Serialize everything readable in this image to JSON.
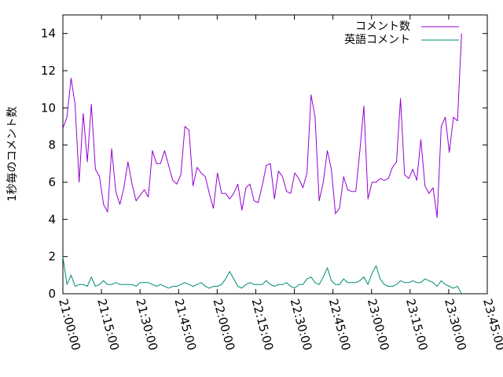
{
  "chart_data": {
    "type": "line",
    "ylabel": "1秒毎のコメント数",
    "xlabel": "",
    "x_ticks": [
      "21:00:00",
      "21:15:00",
      "21:30:00",
      "21:45:00",
      "22:00:00",
      "22:15:00",
      "22:30:00",
      "22:45:00",
      "23:00:00",
      "23:15:00",
      "23:30:00",
      "23:45:00"
    ],
    "y_ticks": [
      0,
      2,
      4,
      6,
      8,
      10,
      12,
      14
    ],
    "xlim": [
      "21:00:00",
      "23:45:00"
    ],
    "ylim": [
      0,
      15
    ],
    "grid": false,
    "legend_position": "top-right",
    "series": [
      {
        "name": "コメント数",
        "color": "#9400d3",
        "values": [
          8.9,
          9.5,
          11.6,
          10.2,
          6.0,
          9.7,
          7.1,
          10.2,
          6.7,
          6.3,
          4.8,
          4.4,
          7.8,
          5.5,
          4.8,
          5.7,
          7.1,
          5.9,
          5.0,
          5.3,
          5.6,
          5.2,
          7.7,
          7.0,
          7.0,
          7.7,
          6.9,
          6.1,
          5.9,
          6.4,
          9.0,
          8.8,
          5.8,
          6.8,
          6.5,
          6.3,
          5.4,
          4.6,
          6.5,
          5.4,
          5.4,
          5.1,
          5.4,
          5.9,
          4.5,
          5.7,
          5.9,
          5.0,
          4.9,
          5.8,
          6.9,
          7.0,
          5.1,
          6.6,
          6.3,
          5.5,
          5.4,
          6.5,
          6.2,
          5.7,
          6.5,
          10.7,
          9.5,
          5.0,
          6.0,
          7.7,
          6.7,
          4.3,
          4.6,
          6.3,
          5.6,
          5.5,
          5.5,
          7.7,
          10.1,
          5.1,
          6.0,
          6.0,
          6.2,
          6.1,
          6.2,
          6.8,
          7.1,
          10.5,
          6.4,
          6.2,
          6.7,
          6.1,
          8.3,
          5.8,
          5.4,
          5.7,
          4.1,
          9.0,
          9.5,
          7.6,
          9.5,
          9.3,
          14.0
        ]
      },
      {
        "name": "英語コメント",
        "color": "#008b74",
        "values": [
          2.0,
          0.5,
          1.0,
          0.4,
          0.5,
          0.5,
          0.4,
          0.9,
          0.4,
          0.5,
          0.7,
          0.5,
          0.5,
          0.6,
          0.5,
          0.5,
          0.5,
          0.5,
          0.4,
          0.6,
          0.6,
          0.6,
          0.5,
          0.4,
          0.5,
          0.4,
          0.3,
          0.4,
          0.4,
          0.5,
          0.6,
          0.5,
          0.4,
          0.5,
          0.6,
          0.4,
          0.3,
          0.4,
          0.4,
          0.5,
          0.8,
          1.2,
          0.8,
          0.4,
          0.3,
          0.5,
          0.6,
          0.5,
          0.5,
          0.5,
          0.7,
          0.5,
          0.4,
          0.5,
          0.5,
          0.6,
          0.4,
          0.3,
          0.5,
          0.5,
          0.8,
          0.9,
          0.6,
          0.5,
          0.9,
          1.4,
          0.7,
          0.5,
          0.5,
          0.8,
          0.6,
          0.6,
          0.6,
          0.7,
          0.9,
          0.5,
          1.1,
          1.5,
          0.8,
          0.5,
          0.4,
          0.4,
          0.5,
          0.7,
          0.6,
          0.6,
          0.7,
          0.6,
          0.6,
          0.8,
          0.7,
          0.6,
          0.4,
          0.7,
          0.5,
          0.4,
          0.3,
          0.4,
          0.0
        ]
      }
    ]
  }
}
